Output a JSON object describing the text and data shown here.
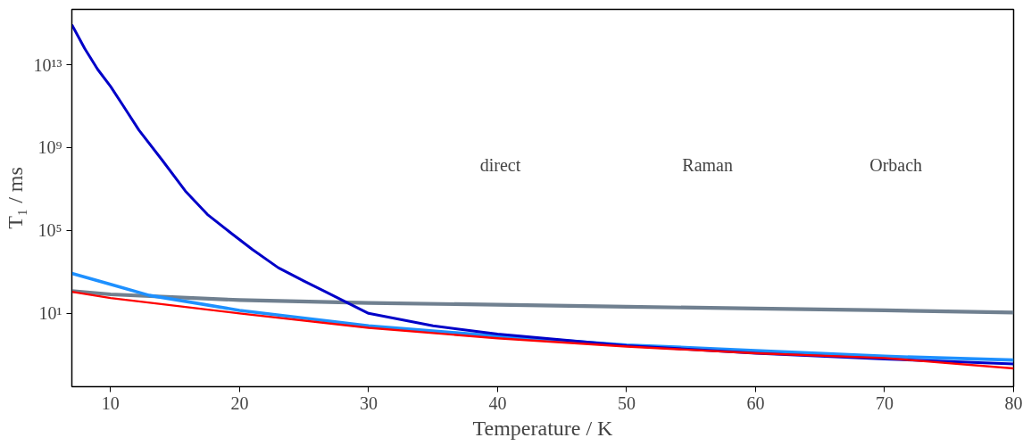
{
  "chart_data": {
    "type": "line",
    "xlabel": "Temperature / K",
    "ylabel": "T₁ / ms",
    "log": "y",
    "grid": false,
    "marker": "none",
    "line_style": "solid",
    "xlim": [
      7,
      80
    ],
    "xticks": [
      10,
      20,
      30,
      40,
      50,
      60,
      70,
      80
    ],
    "ylim": [
      0.0029,
      4700000000000000.0
    ],
    "yticks": [
      {
        "value": 10,
        "label": "10¹"
      },
      {
        "value": 100000,
        "label": "10⁵"
      },
      {
        "value": 1000000000,
        "label": "10⁹"
      },
      {
        "value": 10000000000000,
        "label": "10¹³"
      }
    ],
    "annotations": [
      "direct",
      "Raman",
      "Orbach"
    ],
    "series": [
      {
        "color": "#708090",
        "x": [
          7,
          10,
          20,
          30,
          40,
          50,
          60,
          70,
          80
        ],
        "values": [
          120,
          83,
          44,
          32,
          26,
          21,
          17,
          14,
          11
        ]
      },
      {
        "color": "#1e90ff",
        "x": [
          7,
          10,
          13,
          20,
          30,
          40,
          50,
          60,
          70,
          80
        ],
        "values": [
          850,
          250,
          74,
          14,
          2.5,
          0.8,
          0.3,
          0.16,
          0.085,
          0.056
        ]
      },
      {
        "color": "#0000c8",
        "x": [
          7,
          8,
          9,
          10,
          11,
          12.2,
          14,
          15.8,
          17.5,
          19.4,
          21,
          23,
          25,
          26.6,
          30,
          35,
          40,
          50,
          60,
          70,
          80
        ],
        "values": [
          850000000000000.0,
          60000000000000.0,
          6000000000000.0,
          900000000000.0,
          100000000000.0,
          7000000000.0,
          250000000.0,
          8000000.0,
          600000.0,
          70000.0,
          12000.0,
          1600,
          360,
          115,
          10,
          2.5,
          1.0,
          0.28,
          0.12,
          0.063,
          0.036
        ]
      },
      {
        "color": "#ff0000",
        "x": [
          7,
          10,
          20,
          30,
          40,
          50,
          60,
          70,
          80
        ],
        "values": [
          110,
          55,
          10,
          2.0,
          0.63,
          0.25,
          0.12,
          0.07,
          0.022
        ]
      }
    ]
  }
}
